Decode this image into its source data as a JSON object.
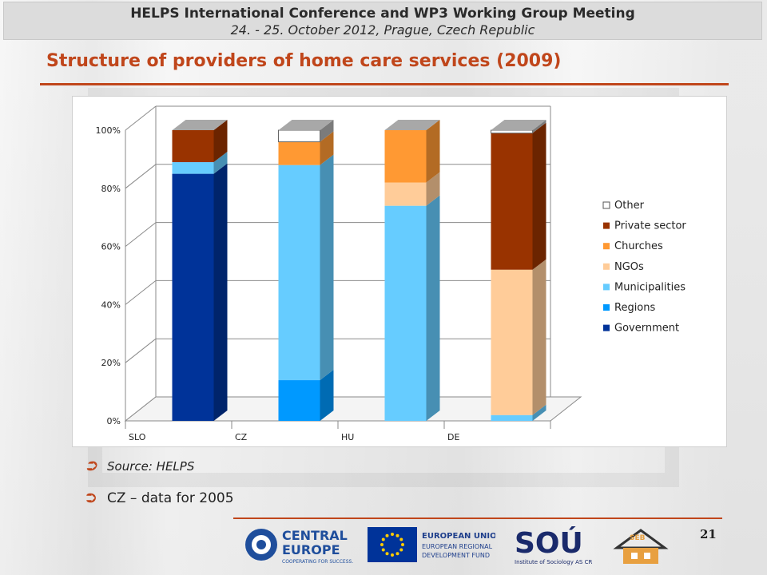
{
  "header": {
    "line1": "HELPS International Conference and WP3 Working Group Meeting",
    "line2": "24. - 25. October 2012, Prague, Czech Republic"
  },
  "slide_title": "Structure of providers of home care services (2009)",
  "bullets": [
    "Source: HELPS",
    "CZ – data for 2005"
  ],
  "page_number": "21",
  "logos": {
    "central_europe": [
      "CENTRAL",
      "EUROPE",
      "COOPERATING FOR SUCCESS."
    ],
    "eu": [
      "EUROPEAN UNION",
      "EUROPEAN REGIONAL",
      "DEVELOPMENT FUND"
    ],
    "sou": [
      "SOÚ",
      "Institute of Sociology AS CR"
    ],
    "seb": "SEB"
  },
  "chart_data": {
    "type": "bar",
    "stacked": true,
    "three_d": true,
    "categories": [
      "SLO",
      "CZ",
      "HU",
      "DE"
    ],
    "ylim": [
      0,
      100
    ],
    "y_ticks": [
      "0%",
      "20%",
      "40%",
      "60%",
      "80%",
      "100%"
    ],
    "legend_position": "right",
    "grid": true,
    "series": [
      {
        "name": "Government",
        "color": "#003399",
        "values": [
          85,
          0,
          0,
          0
        ]
      },
      {
        "name": "Regions",
        "color": "#0099ff",
        "values": [
          0,
          14,
          0,
          0
        ]
      },
      {
        "name": "Municipalities",
        "color": "#66ccff",
        "values": [
          4,
          74,
          74,
          2
        ]
      },
      {
        "name": "NGOs",
        "color": "#ffcc99",
        "values": [
          0,
          0,
          8,
          50
        ]
      },
      {
        "name": "Churches",
        "color": "#ff9933",
        "values": [
          0,
          8,
          18,
          0
        ]
      },
      {
        "name": "Private sector",
        "color": "#993300",
        "values": [
          11,
          0,
          0,
          47
        ]
      },
      {
        "name": "Other",
        "color": "#ffffff",
        "values": [
          0,
          4,
          0,
          1
        ]
      }
    ]
  }
}
